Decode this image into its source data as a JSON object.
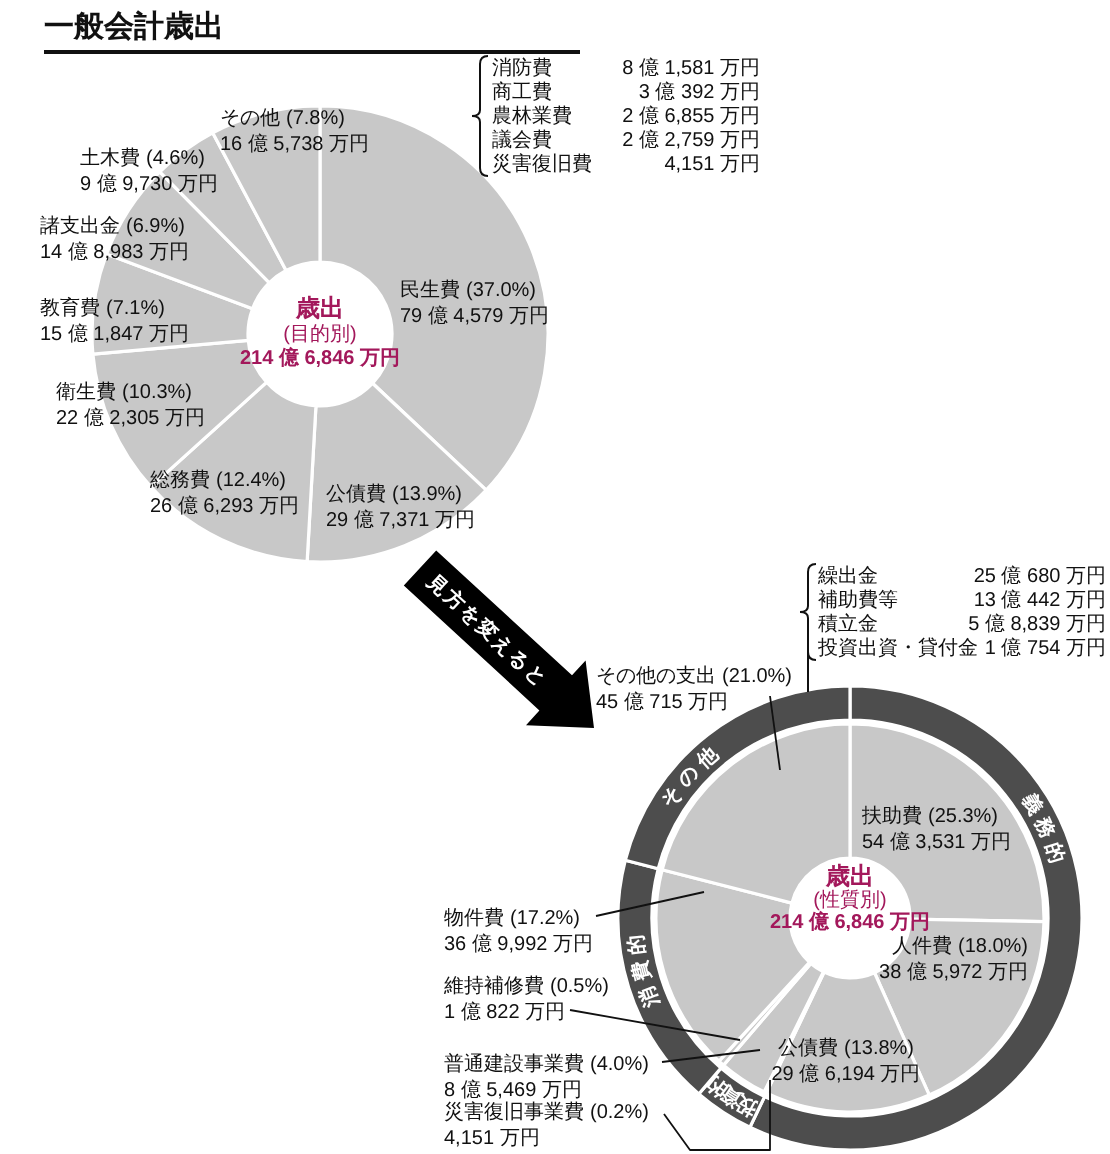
{
  "chart_data": [
    {
      "type": "donut",
      "title": "一般会計歳出",
      "categories": [
        "民生費",
        "公債費",
        "総務費",
        "衛生費",
        "教育費",
        "諸支出金",
        "土木費",
        "その他"
      ],
      "values": [
        37.0,
        13.9,
        12.4,
        10.3,
        7.1,
        6.9,
        4.6,
        7.8
      ],
      "value_labels": [
        "(37.0%)",
        "(13.9%)",
        "(12.4%)",
        "(10.3%)",
        "(7.1%)",
        "(6.9%)",
        "(4.6%)",
        "(7.8%)"
      ],
      "colors": [
        "#c8c8c8",
        "#c8c8c8",
        "#c8c8c8",
        "#c8c8c8",
        "#c8c8c8",
        "#c8c8c8",
        "#c8c8c8",
        "#c8c8c8"
      ],
      "annotations": [
        "79 億 4,579 万円",
        "29 億 7,371 万円",
        "26 億 6,293 万円",
        "22 億 2,305 万円",
        "15 億 1,847 万円",
        "14 億 8,983 万円",
        "9 億 9,730 万円",
        "16 億 5,738 万円",
        "歳出",
        "(目的別)",
        "214 億 6,846 万円",
        "消防費",
        "8 億 1,581 万円",
        "商工費",
        "3 億 392 万円",
        "農林業費",
        "2 億 6,855 万円",
        "議会費",
        "2 億 2,759 万円",
        "災害復旧費",
        "4,151 万円"
      ]
    },
    {
      "type": "donut",
      "categories": [
        "扶助費",
        "人件費",
        "公債費",
        "災害復旧事業費",
        "普通建設事業費",
        "維持補修費",
        "物件費",
        "その他の支出"
      ],
      "values": [
        25.3,
        18.0,
        13.8,
        0.2,
        4.0,
        0.5,
        17.2,
        21.0
      ],
      "value_labels": [
        "(25.3%)",
        "(18.0%)",
        "(13.8%)",
        "(0.2%)",
        "(4.0%)",
        "(0.5%)",
        "(17.2%)",
        "(21.0%)"
      ],
      "colors": [
        "#c8c8c8",
        "#c8c8c8",
        "#c8c8c8",
        "#c8c8c8",
        "#c8c8c8",
        "#c8c8c8",
        "#c8c8c8",
        "#c8c8c8"
      ],
      "annotations": [
        "54 億 3,531 万円",
        "38 億 5,972 万円",
        "29 億 6,194 万円",
        "4,151 万円",
        "8 億 5,469 万円",
        "1 億 822 万円",
        "36 億 9,992 万円",
        "45 億 715 万円",
        "見方を変えると",
        "歳出",
        "(性質別)",
        "214 億 6,846 万円",
        "繰出金",
        "25 億 680 万円",
        "補助費等",
        "13 億 442 万円",
        "積立金",
        "5 億 8,839 万円",
        "投資出資・貸付金",
        "1 億 754 万円"
      ]
    },
    {
      "type": "donut",
      "categories": [
        "義務的",
        "投資的",
        "消費的",
        "その他"
      ],
      "values": [
        57.1,
        4.2,
        17.7,
        21.0
      ],
      "colors": [
        "#4d4d4d",
        "#4d4d4d",
        "#4d4d4d",
        "#4d4d4d"
      ]
    }
  ]
}
